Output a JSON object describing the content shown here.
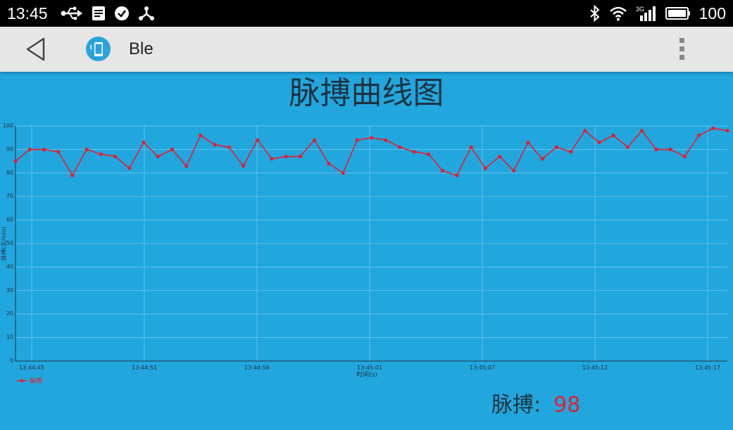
{
  "status_bar": {
    "time": "13:45",
    "battery_level": "100",
    "left_icons": [
      "usb-icon",
      "notification-doc-icon",
      "check-circle-icon",
      "share-hub-icon"
    ],
    "right_icons": [
      "bluetooth-icon",
      "wifi-icon",
      "signal-3g-icon",
      "battery-icon"
    ]
  },
  "action_bar": {
    "title": "Ble",
    "back_icon": "back-triangle-icon",
    "app_icon": "phone-app-icon",
    "menu_icon": "overflow-menu-icon"
  },
  "page_title": "脉搏曲线图",
  "readout": {
    "label": "脉搏:",
    "value": "98"
  },
  "colors": {
    "background": "#22a6de",
    "line": "#e02030",
    "grid": "#5fc3ea",
    "text_dark": "#1e3340"
  },
  "chart_data": {
    "type": "line",
    "title": "",
    "xlabel": "时间(s)",
    "ylabel": "脉搏(次/min)",
    "ylim": [
      0,
      100
    ],
    "yticks": [
      "0",
      "10",
      "20",
      "30",
      "40",
      "50",
      "60",
      "70",
      "80",
      "90",
      "100"
    ],
    "xticks": [
      "13:44:45",
      "13:44:51",
      "13:44:56",
      "13:45:01",
      "13:45:07",
      "13:45:12",
      "13:45:17"
    ],
    "grid": true,
    "legend_position": "bottom-left",
    "series": [
      {
        "name": "脉搏",
        "values": [
          85,
          90,
          90,
          89,
          79,
          90,
          88,
          87,
          82,
          93,
          87,
          90,
          83,
          96,
          92,
          91,
          83,
          94,
          86,
          87,
          87,
          94,
          84,
          80,
          94,
          95,
          94,
          91,
          89,
          88,
          81,
          79,
          91,
          82,
          87,
          81,
          93,
          86,
          91,
          89,
          98,
          93,
          96,
          91,
          98,
          90,
          90,
          87,
          96,
          99,
          98
        ]
      }
    ]
  }
}
